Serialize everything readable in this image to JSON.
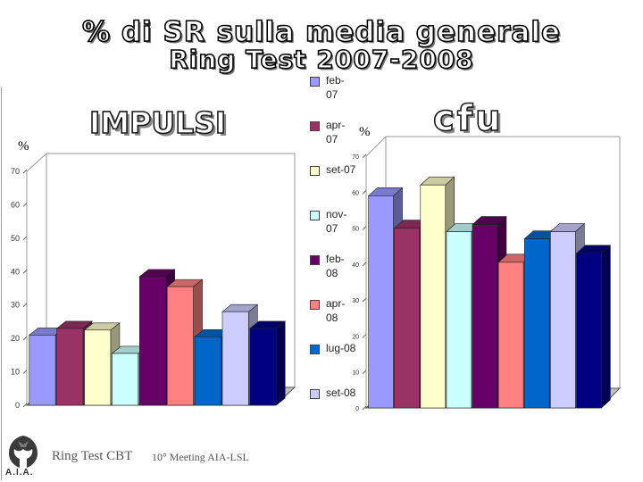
{
  "title": {
    "line1": "% di SR sulla media generale",
    "line2": "Ring Test  2007-2008"
  },
  "charts": {
    "left_heading": "IMPULSI",
    "right_heading": "cfu",
    "left_unit": "%",
    "right_unit": "%"
  },
  "legend": {
    "items": [
      {
        "label": "feb-07",
        "color": "#9999ff"
      },
      {
        "label": "apr-07",
        "color": "#993366"
      },
      {
        "label": "set-07",
        "color": "#ffffcc"
      },
      {
        "label": "nov-07",
        "color": "#ccffff"
      },
      {
        "label": "feb-08",
        "color": "#660066"
      },
      {
        "label": "apr-08",
        "color": "#ff8080"
      },
      {
        "label": "lug-08",
        "color": "#0066cc"
      },
      {
        "label": "set-08",
        "color": "#ccccff"
      }
    ]
  },
  "footer": {
    "ring_test": "Ring Test CBT",
    "meeting": "10° Meeting AIA-LSL",
    "logo_text": "A.I.A."
  },
  "chart_data": [
    {
      "type": "bar",
      "title": "IMPULSI",
      "ylabel": "%",
      "ylim": [
        0,
        70
      ],
      "yticks": [
        0,
        10,
        20,
        30,
        40,
        50,
        60,
        70
      ],
      "grid": false,
      "three_d": true,
      "legend_position": "right",
      "series": [
        {
          "name": "feb-07",
          "values": [
            21
          ]
        },
        {
          "name": "apr-07",
          "values": [
            23
          ]
        },
        {
          "name": "set-07",
          "values": [
            22.5
          ]
        },
        {
          "name": "nov-07",
          "values": [
            15.5
          ]
        },
        {
          "name": "feb-08",
          "values": [
            38.5
          ]
        },
        {
          "name": "apr-08",
          "values": [
            35.5
          ]
        },
        {
          "name": "lug-08",
          "values": [
            20.5
          ]
        },
        {
          "name": "set-08",
          "values": [
            28
          ]
        },
        {
          "name": "",
          "values": [
            23
          ]
        }
      ],
      "extra_bar_color": "#000080"
    },
    {
      "type": "bar",
      "title": "cfu",
      "ylabel": "%",
      "ylim": [
        0,
        70
      ],
      "yticks": [
        0,
        10,
        20,
        30,
        40,
        50,
        60,
        70
      ],
      "grid": false,
      "three_d": true,
      "series": [
        {
          "name": "feb-07",
          "values": [
            59
          ]
        },
        {
          "name": "apr-07",
          "values": [
            50
          ]
        },
        {
          "name": "set-07",
          "values": [
            62
          ]
        },
        {
          "name": "nov-07",
          "values": [
            49
          ]
        },
        {
          "name": "feb-08",
          "values": [
            51
          ]
        },
        {
          "name": "apr-08",
          "values": [
            40.5
          ]
        },
        {
          "name": "lug-08",
          "values": [
            47
          ]
        },
        {
          "name": "set-08",
          "values": [
            49
          ]
        },
        {
          "name": "",
          "values": [
            43
          ]
        }
      ],
      "extra_bar_color": "#000080"
    }
  ]
}
